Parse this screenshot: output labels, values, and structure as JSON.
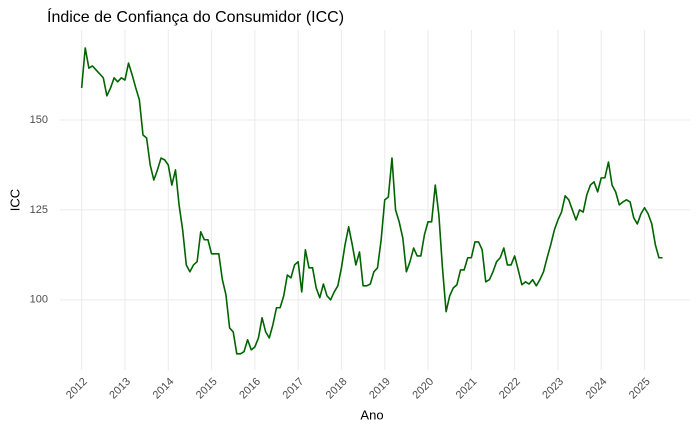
{
  "chart_data": {
    "type": "line",
    "title": "Índice de Confiança do Consumidor (ICC)",
    "x_label": "Ano",
    "y_label": "ICC",
    "color": "#006400",
    "grid": true,
    "xlim": [
      2011.5,
      2026.05
    ],
    "ylim": [
      80.5,
      175
    ],
    "xticks": [
      2012,
      2013,
      2014,
      2015,
      2016,
      2017,
      2018,
      2019,
      2020,
      2021,
      2022,
      2023,
      2024,
      2025
    ],
    "yticks": [
      100,
      125,
      150
    ],
    "x": [
      2012.0,
      2012.083,
      2012.167,
      2012.25,
      2012.333,
      2012.417,
      2012.5,
      2012.583,
      2012.667,
      2012.75,
      2012.833,
      2012.917,
      2013.0,
      2013.083,
      2013.167,
      2013.25,
      2013.333,
      2013.417,
      2013.5,
      2013.583,
      2013.667,
      2013.75,
      2013.833,
      2013.917,
      2014.0,
      2014.083,
      2014.167,
      2014.25,
      2014.333,
      2014.417,
      2014.5,
      2014.583,
      2014.667,
      2014.75,
      2014.833,
      2014.917,
      2015.0,
      2015.083,
      2015.167,
      2015.25,
      2015.333,
      2015.417,
      2015.5,
      2015.583,
      2015.667,
      2015.75,
      2015.833,
      2015.917,
      2016.0,
      2016.083,
      2016.167,
      2016.25,
      2016.333,
      2016.417,
      2016.5,
      2016.583,
      2016.667,
      2016.75,
      2016.833,
      2016.917,
      2017.0,
      2017.083,
      2017.167,
      2017.25,
      2017.333,
      2017.417,
      2017.5,
      2017.583,
      2017.667,
      2017.75,
      2017.833,
      2017.917,
      2018.0,
      2018.083,
      2018.167,
      2018.25,
      2018.333,
      2018.417,
      2018.5,
      2018.583,
      2018.667,
      2018.75,
      2018.833,
      2018.917,
      2019.0,
      2019.083,
      2019.167,
      2019.25,
      2019.333,
      2019.417,
      2019.5,
      2019.583,
      2019.667,
      2019.75,
      2019.833,
      2019.917,
      2020.0,
      2020.083,
      2020.167,
      2020.25,
      2020.333,
      2020.417,
      2020.5,
      2020.583,
      2020.667,
      2020.75,
      2020.833,
      2020.917,
      2021.0,
      2021.083,
      2021.167,
      2021.25,
      2021.333,
      2021.417,
      2021.5,
      2021.583,
      2021.667,
      2021.75,
      2021.833,
      2021.917,
      2022.0,
      2022.083,
      2022.167,
      2022.25,
      2022.333,
      2022.417,
      2022.5,
      2022.583,
      2022.667,
      2022.75,
      2022.833,
      2022.917,
      2023.0,
      2023.083,
      2023.167,
      2023.25,
      2023.333,
      2023.417,
      2023.5,
      2023.583,
      2023.667,
      2023.75,
      2023.833,
      2023.917,
      2024.0,
      2024.083,
      2024.167,
      2024.25,
      2024.333,
      2024.417,
      2024.5,
      2024.583,
      2024.667,
      2024.75,
      2024.833,
      2024.917,
      2025.0,
      2025.083,
      2025.167,
      2025.25,
      2025.333,
      2025.417
    ],
    "values": [
      158.9,
      170,
      164.4,
      165,
      163.9,
      162.8,
      161.7,
      156.7,
      158.9,
      161.7,
      160.6,
      161.7,
      161.1,
      165.8,
      162.5,
      158.9,
      155.6,
      145.8,
      145,
      137.5,
      133.3,
      136.1,
      139.4,
      138.9,
      137.5,
      131.9,
      136.1,
      126.4,
      119.4,
      109.7,
      107.8,
      109.7,
      110.6,
      118.9,
      116.7,
      116.7,
      112.8,
      112.8,
      112.8,
      105.6,
      101.4,
      92.2,
      91.1,
      85,
      85,
      85.6,
      88.9,
      86.1,
      86.9,
      89.4,
      95,
      91.1,
      89.4,
      93.1,
      97.8,
      97.8,
      101.1,
      106.9,
      106.1,
      109.7,
      110.6,
      102.2,
      113.9,
      108.9,
      108.9,
      103.3,
      100.6,
      104.4,
      101.1,
      100,
      102.2,
      103.9,
      108.9,
      115.3,
      120.3,
      115.3,
      109.7,
      113.3,
      103.9,
      103.9,
      104.4,
      107.8,
      108.9,
      116.7,
      127.8,
      128.6,
      139.4,
      125,
      121.7,
      117.2,
      107.8,
      110.6,
      114.4,
      112.2,
      112.2,
      118.1,
      121.7,
      121.7,
      131.9,
      123.6,
      108.9,
      96.7,
      101.1,
      103.3,
      104.2,
      108.3,
      108.3,
      111.7,
      111.7,
      116.1,
      116.1,
      113.9,
      105,
      105.6,
      107.8,
      110.6,
      111.7,
      114.4,
      109.7,
      109.7,
      112.2,
      108.3,
      104.2,
      105,
      104.4,
      105.6,
      103.9,
      105.6,
      107.8,
      111.7,
      115.3,
      119.4,
      122.2,
      124.4,
      128.9,
      127.8,
      125,
      122.2,
      125,
      124.4,
      129.2,
      131.9,
      132.8,
      130,
      133.9,
      133.9,
      138.3,
      131.9,
      130,
      126.4,
      127.2,
      127.8,
      127.2,
      122.8,
      121.1,
      123.9,
      125.6,
      123.9,
      121.1,
      115.3,
      111.7,
      111.7
    ]
  }
}
